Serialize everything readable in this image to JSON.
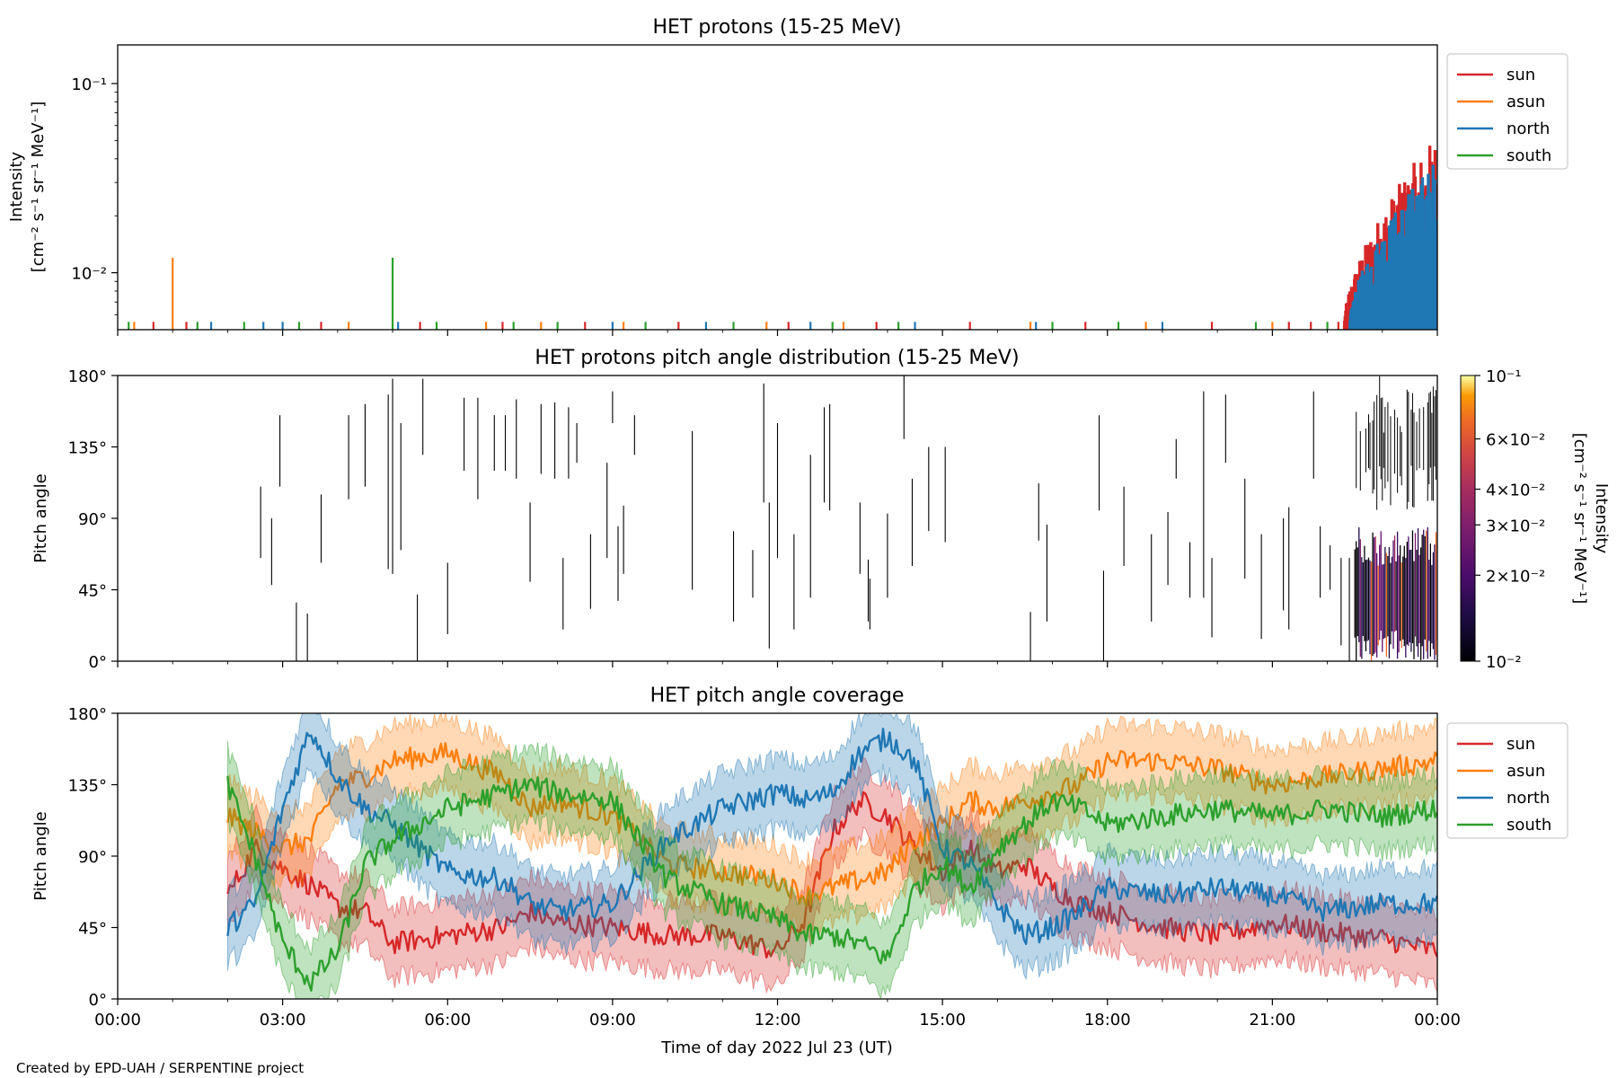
{
  "figure": {
    "credit": "Created by EPD-UAH / SERPENTINE project",
    "xlabel": "Time of day 2022 Jul 23 (UT)",
    "xticks": [
      "00:00",
      "03:00",
      "06:00",
      "09:00",
      "12:00",
      "15:00",
      "18:00",
      "21:00",
      "00:00"
    ]
  },
  "chart_data": [
    {
      "type": "line",
      "title": "HET protons (15-25 MeV)",
      "ylabel_lines": [
        "Intensity",
        "[cm⁻² s⁻¹ sr⁻¹ MeV⁻¹]"
      ],
      "yscale": "log",
      "ylim": [
        0.005,
        0.16
      ],
      "yticks": [
        {
          "value": 0.01,
          "label": "10⁻²"
        },
        {
          "value": 0.1,
          "label": "10⁻¹"
        }
      ],
      "xlim_hours": [
        0,
        24
      ],
      "legend": "outside-right",
      "series": [
        {
          "name": "sun",
          "color": "#d62728",
          "spikes": [
            [
              0.65,
              0.0055
            ],
            [
              1.25,
              0.0055
            ],
            [
              3.7,
              0.0055
            ],
            [
              5.5,
              0.0055
            ],
            [
              7.0,
              0.0055
            ],
            [
              8.5,
              0.0055
            ],
            [
              10.2,
              0.0055
            ],
            [
              12.2,
              0.0055
            ],
            [
              13.8,
              0.0055
            ],
            [
              15.5,
              0.0055
            ],
            [
              17.6,
              0.0055
            ],
            [
              19.9,
              0.0055
            ],
            [
              21.3,
              0.0055
            ],
            [
              21.7,
              0.0055
            ],
            [
              22.2,
              0.0055
            ]
          ],
          "late_activity": {
            "start_hour": 22.3,
            "end_hour": 24.0,
            "base": 0.0055,
            "peak": 0.055
          }
        },
        {
          "name": "asun",
          "color": "#ff7f0e",
          "spikes": [
            [
              0.3,
              0.0055
            ],
            [
              1.0,
              0.012
            ],
            [
              4.2,
              0.0055
            ],
            [
              6.7,
              0.0055
            ],
            [
              7.7,
              0.0055
            ],
            [
              9.2,
              0.0055
            ],
            [
              11.8,
              0.0055
            ],
            [
              13.2,
              0.0055
            ],
            [
              16.6,
              0.0055
            ],
            [
              18.7,
              0.0055
            ],
            [
              21.0,
              0.0055
            ]
          ],
          "late_activity": {
            "start_hour": 23.2,
            "end_hour": 24.0,
            "base": 0.0055,
            "peak": 0.016
          }
        },
        {
          "name": "north",
          "color": "#1f77b4",
          "spikes": [
            [
              1.7,
              0.0055
            ],
            [
              2.65,
              0.0055
            ],
            [
              3.0,
              0.0055
            ],
            [
              5.1,
              0.0055
            ],
            [
              9.0,
              0.0055
            ],
            [
              10.7,
              0.0055
            ],
            [
              12.6,
              0.0055
            ],
            [
              14.5,
              0.0055
            ],
            [
              16.7,
              0.0055
            ],
            [
              19.0,
              0.0055
            ]
          ],
          "late_activity": {
            "start_hour": 22.4,
            "end_hour": 23.95,
            "base": 0.0055,
            "peak": 0.04
          }
        },
        {
          "name": "south",
          "color": "#2ca02c",
          "spikes": [
            [
              0.2,
              0.0055
            ],
            [
              1.45,
              0.0055
            ],
            [
              2.3,
              0.0055
            ],
            [
              3.3,
              0.0055
            ],
            [
              5.0,
              0.012
            ],
            [
              5.8,
              0.0055
            ],
            [
              7.2,
              0.0055
            ],
            [
              8.0,
              0.0055
            ],
            [
              9.6,
              0.0055
            ],
            [
              11.2,
              0.0055
            ],
            [
              13.0,
              0.0055
            ],
            [
              14.2,
              0.0055
            ],
            [
              17.0,
              0.0055
            ],
            [
              18.2,
              0.0055
            ],
            [
              20.7,
              0.0055
            ],
            [
              22.0,
              0.0055
            ]
          ],
          "late_activity": null
        }
      ]
    },
    {
      "type": "heatmap",
      "title": "HET protons pitch angle distribution (15-25 MeV)",
      "ylabel": "Pitch angle",
      "ylim": [
        0,
        180
      ],
      "yticks": [
        "0°",
        "45°",
        "90°",
        "135°",
        "180°"
      ],
      "xlim_hours": [
        0,
        24
      ],
      "colorbar": {
        "label_lines": [
          "Intensity",
          "[cm⁻² s⁻¹ sr⁻¹ MeV⁻¹]"
        ],
        "scale": "log",
        "range": [
          0.01,
          0.1
        ],
        "colormap": "inferno",
        "ticks": [
          {
            "value": 0.01,
            "label": "10⁻²"
          },
          {
            "value": 0.02,
            "label": "2×10⁻²"
          },
          {
            "value": 0.03,
            "label": "3×10⁻²"
          },
          {
            "value": 0.04,
            "label": "4×10⁻²"
          },
          {
            "value": 0.06,
            "label": "6×10⁻²"
          },
          {
            "value": 0.1,
            "label": "10⁻¹"
          }
        ]
      },
      "segments_hours_deg": [
        [
          2.6,
          65,
          110
        ],
        [
          2.8,
          48,
          90
        ],
        [
          2.95,
          110,
          155
        ],
        [
          3.25,
          0,
          37
        ],
        [
          3.45,
          0,
          30
        ],
        [
          3.7,
          62,
          105
        ],
        [
          4.2,
          102,
          155
        ],
        [
          4.5,
          110,
          162
        ],
        [
          4.92,
          58,
          168
        ],
        [
          5.0,
          55,
          178
        ],
        [
          5.15,
          70,
          150
        ],
        [
          5.45,
          0,
          42
        ],
        [
          5.55,
          130,
          178
        ],
        [
          6.0,
          17,
          62
        ],
        [
          6.3,
          120,
          166
        ],
        [
          6.55,
          102,
          166
        ],
        [
          6.85,
          120,
          155
        ],
        [
          7.05,
          120,
          155
        ],
        [
          7.25,
          115,
          165
        ],
        [
          7.5,
          50,
          100
        ],
        [
          7.7,
          118,
          162
        ],
        [
          7.95,
          115,
          163
        ],
        [
          8.1,
          20,
          65
        ],
        [
          8.2,
          115,
          160
        ],
        [
          8.35,
          125,
          150
        ],
        [
          8.6,
          33,
          80
        ],
        [
          8.9,
          65,
          125
        ],
        [
          9.0,
          150,
          170
        ],
        [
          9.1,
          38,
          85
        ],
        [
          9.2,
          55,
          98
        ],
        [
          9.4,
          130,
          155
        ],
        [
          10.45,
          45,
          145
        ],
        [
          11.2,
          25,
          82
        ],
        [
          11.55,
          40,
          70
        ],
        [
          11.75,
          100,
          175
        ],
        [
          11.85,
          8,
          100
        ],
        [
          12.0,
          65,
          150
        ],
        [
          12.3,
          20,
          80
        ],
        [
          12.6,
          40,
          130
        ],
        [
          12.85,
          100,
          160
        ],
        [
          12.95,
          95,
          162
        ],
        [
          13.5,
          55,
          100
        ],
        [
          13.65,
          25,
          64
        ],
        [
          13.68,
          20,
          52
        ],
        [
          14.0,
          40,
          93
        ],
        [
          14.3,
          140,
          180
        ],
        [
          14.45,
          60,
          115
        ],
        [
          14.75,
          82,
          135
        ],
        [
          15.05,
          75,
          135
        ],
        [
          16.6,
          0,
          31
        ],
        [
          16.75,
          76,
          112
        ],
        [
          16.9,
          25,
          86
        ],
        [
          17.85,
          95,
          155
        ],
        [
          17.93,
          0,
          57
        ],
        [
          18.3,
          60,
          110
        ],
        [
          18.8,
          25,
          80
        ],
        [
          19.1,
          48,
          94
        ],
        [
          19.25,
          115,
          140
        ],
        [
          19.5,
          40,
          75
        ],
        [
          19.75,
          40,
          170
        ],
        [
          19.9,
          15,
          65
        ],
        [
          20.15,
          125,
          168
        ],
        [
          20.5,
          52,
          115
        ],
        [
          20.8,
          14,
          80
        ],
        [
          21.2,
          32,
          90
        ],
        [
          21.3,
          20,
          97
        ],
        [
          21.75,
          115,
          170
        ],
        [
          21.87,
          40,
          85
        ],
        [
          22.05,
          45,
          73
        ],
        [
          22.25,
          10,
          65
        ],
        [
          22.4,
          0,
          65
        ]
      ],
      "dense_region": {
        "start_hour": 22.5,
        "end_hour": 24.0,
        "lower_band_deg": [
          0,
          85
        ],
        "upper_band_deg": [
          85,
          180
        ]
      }
    },
    {
      "type": "area",
      "title": "HET pitch angle coverage",
      "ylabel": "Pitch angle",
      "ylim": [
        0,
        180
      ],
      "yticks": [
        "0°",
        "45°",
        "90°",
        "135°",
        "180°"
      ],
      "xlim_hours": [
        0,
        24
      ],
      "legend": "outside-right",
      "band_halfwidth_deg": 22,
      "series": [
        {
          "name": "sun",
          "color": "#d62728",
          "x": [
            2.0,
            2.5,
            3.0,
            3.5,
            4.0,
            4.5,
            5.0,
            6.0,
            7.0,
            7.5,
            8.0,
            9.0,
            10.0,
            11.0,
            12.0,
            12.5,
            13.0,
            13.5,
            14.0,
            14.5,
            15.0,
            15.5,
            16.0,
            16.5,
            17.0,
            17.5,
            18.0,
            19.0,
            20.0,
            21.0,
            22.0,
            23.0,
            24.0
          ],
          "y": [
            65,
            95,
            82,
            72,
            58,
            55,
            35,
            40,
            45,
            55,
            48,
            45,
            40,
            40,
            30,
            50,
            105,
            125,
            115,
            95,
            80,
            95,
            80,
            85,
            70,
            60,
            55,
            45,
            40,
            48,
            42,
            38,
            30
          ]
        },
        {
          "name": "asun",
          "color": "#ff7f0e",
          "x": [
            2.0,
            2.5,
            3.0,
            3.5,
            4.0,
            4.5,
            5.0,
            6.0,
            7.0,
            7.5,
            8.0,
            9.0,
            10.0,
            11.0,
            12.0,
            12.5,
            13.0,
            13.5,
            14.0,
            14.5,
            15.0,
            15.5,
            16.0,
            16.5,
            17.0,
            17.5,
            18.0,
            19.0,
            20.0,
            21.0,
            22.0,
            23.0,
            24.0
          ],
          "y": [
            115,
            105,
            95,
            100,
            135,
            140,
            150,
            155,
            140,
            120,
            125,
            115,
            85,
            80,
            75,
            65,
            70,
            75,
            80,
            100,
            110,
            125,
            120,
            125,
            130,
            135,
            150,
            150,
            145,
            135,
            140,
            145,
            150
          ]
        },
        {
          "name": "north",
          "color": "#1f77b4",
          "x": [
            2.0,
            2.5,
            3.0,
            3.5,
            4.0,
            4.5,
            5.0,
            6.0,
            7.0,
            7.5,
            8.0,
            9.0,
            10.0,
            11.0,
            12.0,
            12.5,
            13.0,
            13.5,
            14.0,
            14.5,
            15.0,
            15.5,
            16.0,
            16.5,
            17.0,
            17.5,
            18.0,
            19.0,
            20.0,
            21.0,
            22.0,
            23.0,
            24.0
          ],
          "y": [
            45,
            60,
            120,
            170,
            140,
            120,
            110,
            80,
            75,
            60,
            55,
            60,
            100,
            120,
            130,
            125,
            130,
            155,
            165,
            150,
            95,
            85,
            60,
            40,
            45,
            55,
            70,
            65,
            70,
            65,
            55,
            60,
            60
          ]
        },
        {
          "name": "south",
          "color": "#2ca02c",
          "x": [
            2.0,
            2.5,
            3.0,
            3.5,
            4.0,
            4.5,
            5.0,
            6.0,
            7.0,
            7.5,
            8.0,
            9.0,
            10.0,
            11.0,
            12.0,
            12.5,
            13.0,
            13.5,
            14.0,
            14.5,
            15.0,
            15.5,
            16.0,
            16.5,
            17.0,
            17.5,
            18.0,
            19.0,
            20.0,
            21.0,
            22.0,
            23.0,
            24.0
          ],
          "y": [
            135,
            90,
            35,
            10,
            30,
            85,
            100,
            120,
            130,
            135,
            130,
            125,
            75,
            60,
            50,
            40,
            40,
            35,
            25,
            70,
            85,
            70,
            95,
            110,
            125,
            120,
            110,
            115,
            120,
            115,
            120,
            115,
            120
          ]
        }
      ]
    }
  ]
}
